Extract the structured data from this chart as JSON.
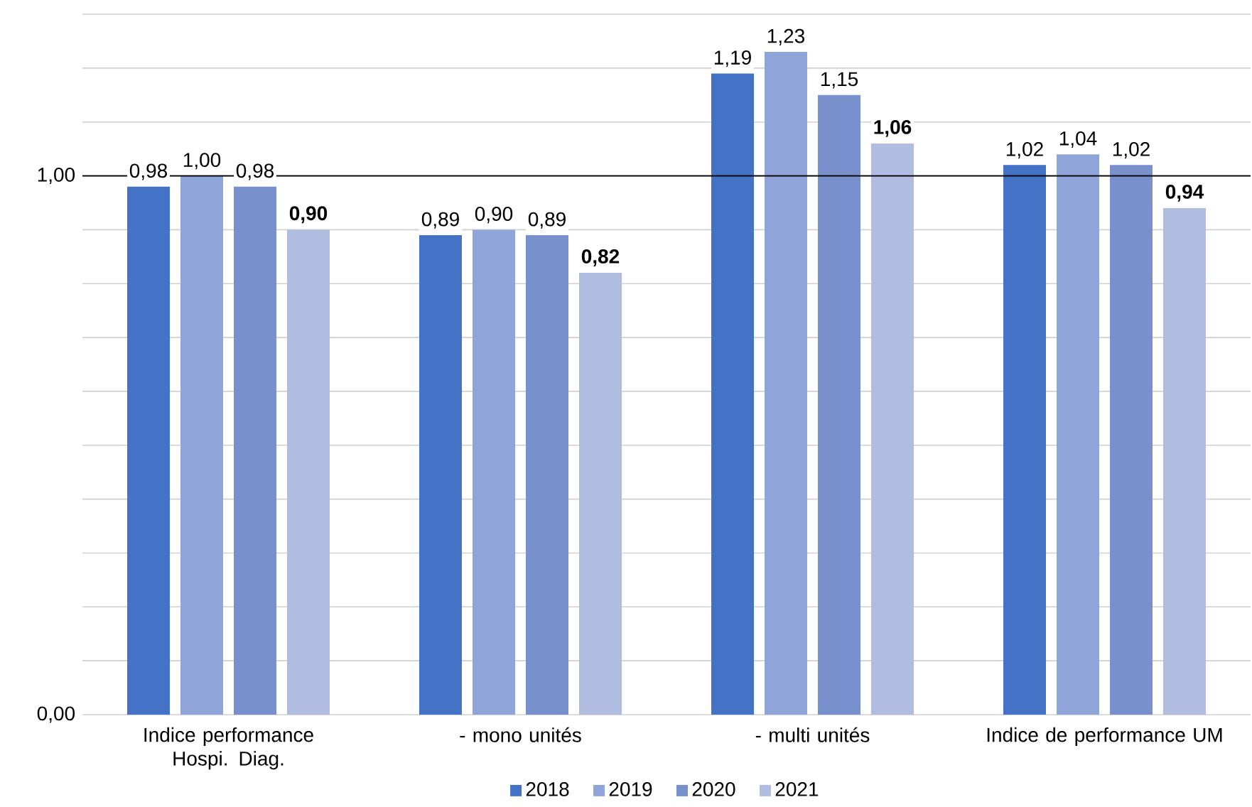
{
  "chart_data": {
    "type": "bar",
    "categories": [
      "Indice performance Hospi. Diag.",
      "- mono unités",
      "- multi unités",
      "Indice de performance UM"
    ],
    "series": [
      {
        "name": "2018",
        "color": "#4472c4",
        "values": [
          0.98,
          0.89,
          1.19,
          1.02
        ],
        "value_labels": [
          "0,98",
          "0,89",
          "1,19",
          "1,02"
        ]
      },
      {
        "name": "2019",
        "color": "#8fa5d9",
        "values": [
          1.0,
          0.9,
          1.23,
          1.04
        ],
        "value_labels": [
          "1,00",
          "0,90",
          "1,23",
          "1,04"
        ]
      },
      {
        "name": "2020",
        "color": "#7890cc",
        "values": [
          0.98,
          0.89,
          1.15,
          1.02
        ],
        "value_labels": [
          "0,98",
          "0,89",
          "1,15",
          "1,02"
        ]
      },
      {
        "name": "2021",
        "color": "#b0bde0",
        "values": [
          0.9,
          0.82,
          1.06,
          0.94
        ],
        "value_labels": [
          "**0,90**",
          "**0,82**",
          "**1,06**",
          "**0,94**"
        ]
      }
    ],
    "ylim": [
      0,
      1.3
    ],
    "yticks": [
      {
        "value": 0,
        "label": "0,00"
      },
      {
        "value": 0.1,
        "label": null
      },
      {
        "value": 0.2,
        "label": null
      },
      {
        "value": 0.3,
        "label": null
      },
      {
        "value": 0.4,
        "label": null
      },
      {
        "value": 0.5,
        "label": null
      },
      {
        "value": 0.6,
        "label": null
      },
      {
        "value": 0.7,
        "label": null
      },
      {
        "value": 0.8,
        "label": null
      },
      {
        "value": 0.9,
        "label": null
      },
      {
        "value": 1.0,
        "label": "1,00"
      },
      {
        "value": 1.1,
        "label": null
      },
      {
        "value": 1.2,
        "label": null
      },
      {
        "value": 1.3,
        "label": null
      }
    ],
    "grid": "y",
    "legend": "bottom",
    "ref_lines": [
      {
        "axis": "y",
        "value": 1.0,
        "color": "#000000"
      }
    ]
  }
}
